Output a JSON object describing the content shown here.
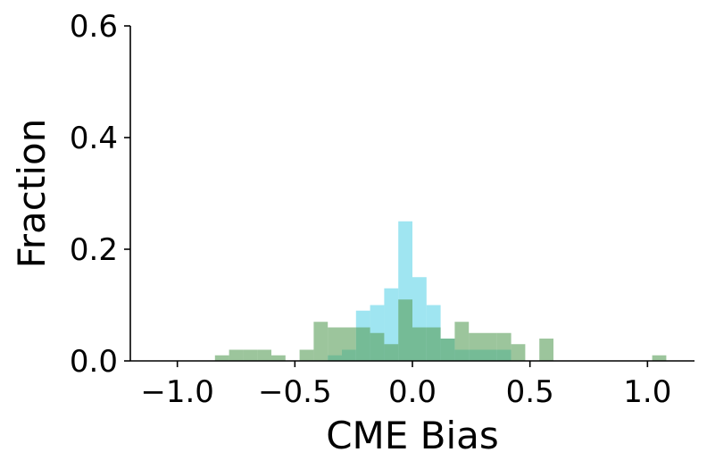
{
  "chart_data": {
    "type": "histogram",
    "title": "",
    "xlabel": "CME Bias",
    "ylabel": "Fraction",
    "xlim": [
      -1.2,
      1.2
    ],
    "ylim": [
      0,
      0.6
    ],
    "xticks": [
      -1.0,
      -0.5,
      0.0,
      0.5,
      1.0
    ],
    "xtick_labels": [
      "−1.0",
      "−0.5",
      "0.0",
      "0.5",
      "1.0"
    ],
    "yticks": [
      0,
      0.2,
      0.4,
      0.6
    ],
    "ytick_labels": [
      "0.0",
      "0.2",
      "0.4",
      "0.6"
    ],
    "grid": false,
    "series": [
      {
        "color": "#5fd3e8",
        "opacity": 0.6,
        "bins": [
          {
            "x0": -0.36,
            "x1": -0.3,
            "y": 0.01
          },
          {
            "x0": -0.3,
            "x1": -0.24,
            "y": 0.02
          },
          {
            "x0": -0.24,
            "x1": -0.18,
            "y": 0.09
          },
          {
            "x0": -0.18,
            "x1": -0.12,
            "y": 0.1
          },
          {
            "x0": -0.12,
            "x1": -0.06,
            "y": 0.13
          },
          {
            "x0": -0.06,
            "x1": 0.0,
            "y": 0.25
          },
          {
            "x0": 0.0,
            "x1": 0.06,
            "y": 0.15
          },
          {
            "x0": 0.06,
            "x1": 0.12,
            "y": 0.1
          },
          {
            "x0": 0.12,
            "x1": 0.18,
            "y": 0.04
          },
          {
            "x0": 0.18,
            "x1": 0.24,
            "y": 0.02
          },
          {
            "x0": 0.24,
            "x1": 0.3,
            "y": 0.02
          },
          {
            "x0": 0.3,
            "x1": 0.36,
            "y": 0.02
          },
          {
            "x0": 0.36,
            "x1": 0.42,
            "y": 0.02
          }
        ]
      },
      {
        "color": "#5a9e5a",
        "opacity": 0.6,
        "bins": [
          {
            "x0": -0.84,
            "x1": -0.78,
            "y": 0.01
          },
          {
            "x0": -0.78,
            "x1": -0.72,
            "y": 0.02
          },
          {
            "x0": -0.72,
            "x1": -0.66,
            "y": 0.02
          },
          {
            "x0": -0.66,
            "x1": -0.6,
            "y": 0.02
          },
          {
            "x0": -0.6,
            "x1": -0.54,
            "y": 0.01
          },
          {
            "x0": -0.48,
            "x1": -0.42,
            "y": 0.02
          },
          {
            "x0": -0.42,
            "x1": -0.36,
            "y": 0.07
          },
          {
            "x0": -0.36,
            "x1": -0.3,
            "y": 0.06
          },
          {
            "x0": -0.3,
            "x1": -0.24,
            "y": 0.06
          },
          {
            "x0": -0.24,
            "x1": -0.18,
            "y": 0.06
          },
          {
            "x0": -0.18,
            "x1": -0.12,
            "y": 0.05
          },
          {
            "x0": -0.12,
            "x1": -0.06,
            "y": 0.03
          },
          {
            "x0": -0.06,
            "x1": 0.0,
            "y": 0.11
          },
          {
            "x0": 0.0,
            "x1": 0.06,
            "y": 0.06
          },
          {
            "x0": 0.06,
            "x1": 0.12,
            "y": 0.06
          },
          {
            "x0": 0.12,
            "x1": 0.18,
            "y": 0.04
          },
          {
            "x0": 0.18,
            "x1": 0.24,
            "y": 0.07
          },
          {
            "x0": 0.24,
            "x1": 0.3,
            "y": 0.05
          },
          {
            "x0": 0.3,
            "x1": 0.36,
            "y": 0.05
          },
          {
            "x0": 0.36,
            "x1": 0.42,
            "y": 0.05
          },
          {
            "x0": 0.42,
            "x1": 0.48,
            "y": 0.03
          },
          {
            "x0": 0.54,
            "x1": 0.6,
            "y": 0.04
          },
          {
            "x0": 1.02,
            "x1": 1.08,
            "y": 0.01
          }
        ]
      }
    ]
  }
}
